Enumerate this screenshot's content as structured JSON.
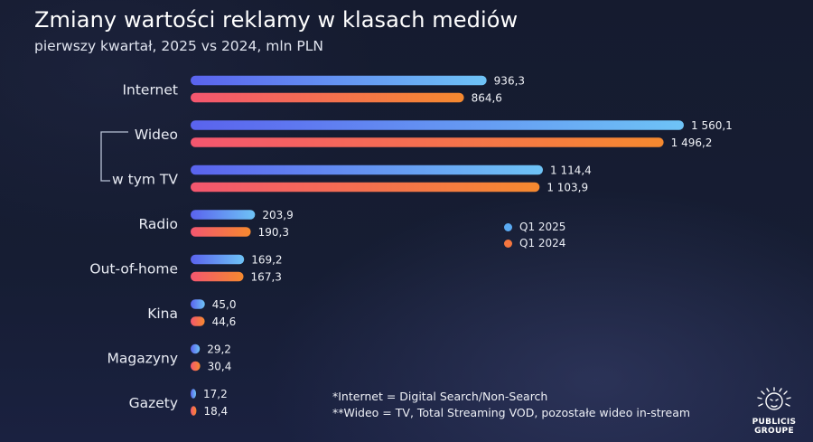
{
  "chart_data": {
    "type": "bar",
    "orientation": "horizontal",
    "title": "Zmiany wartości reklamy w klasach mediów",
    "subtitle": "pierwszy kwartał, 2025 vs 2024, mln PLN",
    "categories": [
      "Internet",
      "Wideo",
      "w tym TV",
      "Radio",
      "Out-of-home",
      "Kina",
      "Magazyny",
      "Gazety"
    ],
    "value_labels": {
      "Q1 2025": [
        "936,3",
        "1 560,1",
        "1 114,4",
        "203,9",
        "169,2",
        "45,0",
        "29,2",
        "17,2"
      ],
      "Q1 2024": [
        "864,6",
        "1 496,2",
        "1 103,9",
        "190,3",
        "167,3",
        "44,6",
        "30,4",
        "18,4"
      ]
    },
    "series": [
      {
        "name": "Q1 2025",
        "values": [
          936.3,
          1560.1,
          1114.4,
          203.9,
          169.2,
          45.0,
          29.2,
          17.2
        ],
        "color_start": "#5a63ee",
        "color_end": "#6ec3f6"
      },
      {
        "name": "Q1 2024",
        "values": [
          864.6,
          1496.2,
          1103.9,
          190.3,
          167.3,
          44.6,
          30.4,
          18.4
        ],
        "color_start": "#f4566f",
        "color_end": "#f5892f"
      }
    ],
    "legend_position": "right-middle",
    "grid": false
  },
  "legend": {
    "items": [
      {
        "label": "Q1 2025",
        "color": "#5aaaf2"
      },
      {
        "label": "Q1 2024",
        "color": "#f5763f"
      }
    ]
  },
  "notes": {
    "line1": "*Internet = Digital Search/Non-Search",
    "line2": "**Wideo = TV, Total Streaming VOD, pozostałe wideo in-stream"
  },
  "logo": {
    "line1": "PUBLICIS",
    "line2": "GROUPE"
  },
  "colors": {
    "background": "#141a2e",
    "text": "#ffffff",
    "bracket": "#b9c2d6"
  }
}
